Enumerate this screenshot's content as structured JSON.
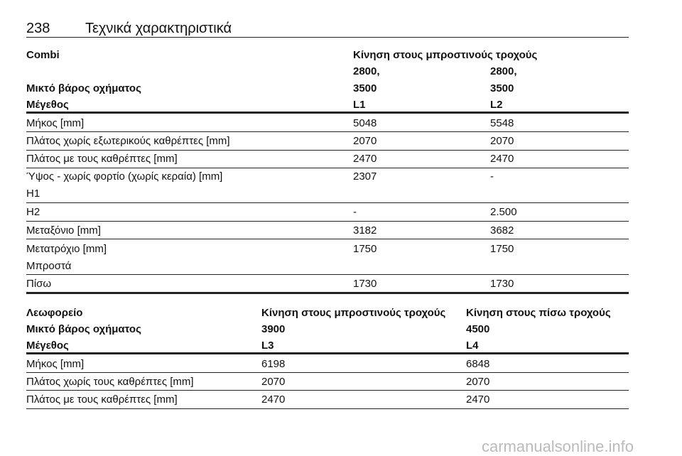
{
  "header": {
    "page_number": "238",
    "title": "Τεχνικά χαρακτηριστικά"
  },
  "tables": [
    {
      "header": [
        [
          "Combi",
          "Κίνηση στους μπροστινούς τροχούς"
        ],
        [
          "Μικτό βάρος οχήματος",
          [
            "2800,",
            "3500"
          ],
          [
            "2800,",
            "3500"
          ]
        ],
        [
          "Μέγεθος",
          "L1",
          "L2"
        ]
      ],
      "rows": [
        [
          "Μήκος [mm]",
          "5048",
          "5548"
        ],
        [
          "Πλάτος χωρίς εξωτερικούς καθρέπτες [mm]",
          "2070",
          "2070"
        ],
        [
          "Πλάτος με τους καθρέπτες [mm]",
          "2470",
          "2470"
        ],
        [
          [
            "Ύψος - χωρίς φορτίο (χωρίς κεραία) [mm]",
            "H1"
          ],
          "2307",
          "-"
        ],
        [
          "H2",
          "-",
          "2.500"
        ],
        [
          "Μεταξόνιο [mm]",
          "3182",
          "3682"
        ],
        [
          [
            "Μετατρόχιο [mm]",
            "Μπροστά"
          ],
          "1750",
          "1750"
        ],
        [
          "Πίσω",
          "1730",
          "1730"
        ]
      ]
    },
    {
      "header": [
        [
          "Λεωφορείο",
          "Κίνηση στους μπροστινούς τροχούς",
          "Κίνηση στους πίσω τροχούς"
        ],
        [
          "Μικτό βάρος οχήματος",
          "3900",
          "4500"
        ],
        [
          "Μέγεθος",
          "L3",
          "L4"
        ]
      ],
      "rows": [
        [
          "Μήκος [mm]",
          "6198",
          "6848"
        ],
        [
          "Πλάτος χωρίς τους καθρέπτες [mm]",
          "2070",
          "2070"
        ],
        [
          "Πλάτος με τους καθρέπτες [mm]",
          "2470",
          "2470"
        ]
      ]
    }
  ],
  "watermark": "carmanualsonline.info"
}
